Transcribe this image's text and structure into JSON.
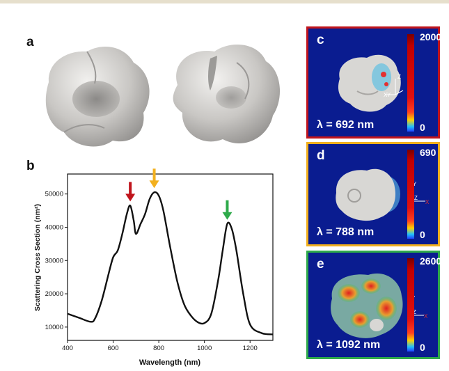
{
  "panels": {
    "a": {
      "label": "a"
    },
    "b": {
      "label": "b"
    },
    "c": {
      "label": "c",
      "wavelength_label": "λ = 692 nm",
      "colorbar_max": "2000",
      "colorbar_min": "0",
      "border_color": "#c0141c",
      "axis_labels": [
        "Z",
        "X",
        "Y"
      ]
    },
    "d": {
      "label": "d",
      "wavelength_label": "λ = 788 nm",
      "colorbar_max": "690",
      "colorbar_min": "0",
      "border_color": "#f2b01e",
      "axis_labels": [
        "Y",
        "Z",
        "X"
      ]
    },
    "e": {
      "label": "e",
      "wavelength_label": "λ = 1092 nm",
      "colorbar_max": "2600",
      "colorbar_min": "0",
      "border_color": "#2eaa4a",
      "axis_labels": [
        "Y",
        "Z",
        "X"
      ]
    }
  },
  "colors": {
    "panel_background": "#0a1c90",
    "spectrum_line": "#111111",
    "top_bar": "#e6dfcc"
  },
  "chart_data": {
    "type": "line",
    "xlabel": "Wavelength (nm)",
    "ylabel": "Scattering Cross Section (nm²)",
    "xlim": [
      400,
      1300
    ],
    "ylim": [
      6000,
      56000
    ],
    "xticks": [
      400,
      600,
      800,
      1000,
      1200
    ],
    "yticks": [
      10000,
      20000,
      30000,
      40000,
      50000
    ],
    "grid": false,
    "x": [
      400,
      450,
      500,
      520,
      550,
      580,
      600,
      620,
      640,
      660,
      675,
      690,
      700,
      720,
      740,
      760,
      780,
      800,
      820,
      850,
      880,
      910,
      940,
      970,
      1000,
      1030,
      1060,
      1080,
      1100,
      1120,
      1140,
      1170,
      1200,
      1250,
      1300
    ],
    "y": [
      14000,
      12800,
      11600,
      12500,
      18000,
      26000,
      31000,
      33000,
      38000,
      44000,
      46500,
      42000,
      38000,
      41000,
      44000,
      48500,
      50500,
      49500,
      45000,
      34000,
      24000,
      17000,
      13500,
      11500,
      11200,
      14000,
      24000,
      33000,
      41000,
      39500,
      33000,
      20000,
      10800,
      8200,
      7800
    ],
    "annotations": [
      {
        "type": "arrow",
        "x": 675,
        "y": 46500,
        "color": "#c0141c"
      },
      {
        "type": "arrow",
        "x": 780,
        "y": 50500,
        "color": "#f2b01e"
      },
      {
        "type": "arrow",
        "x": 1100,
        "y": 41000,
        "color": "#2eaa4a"
      }
    ]
  }
}
